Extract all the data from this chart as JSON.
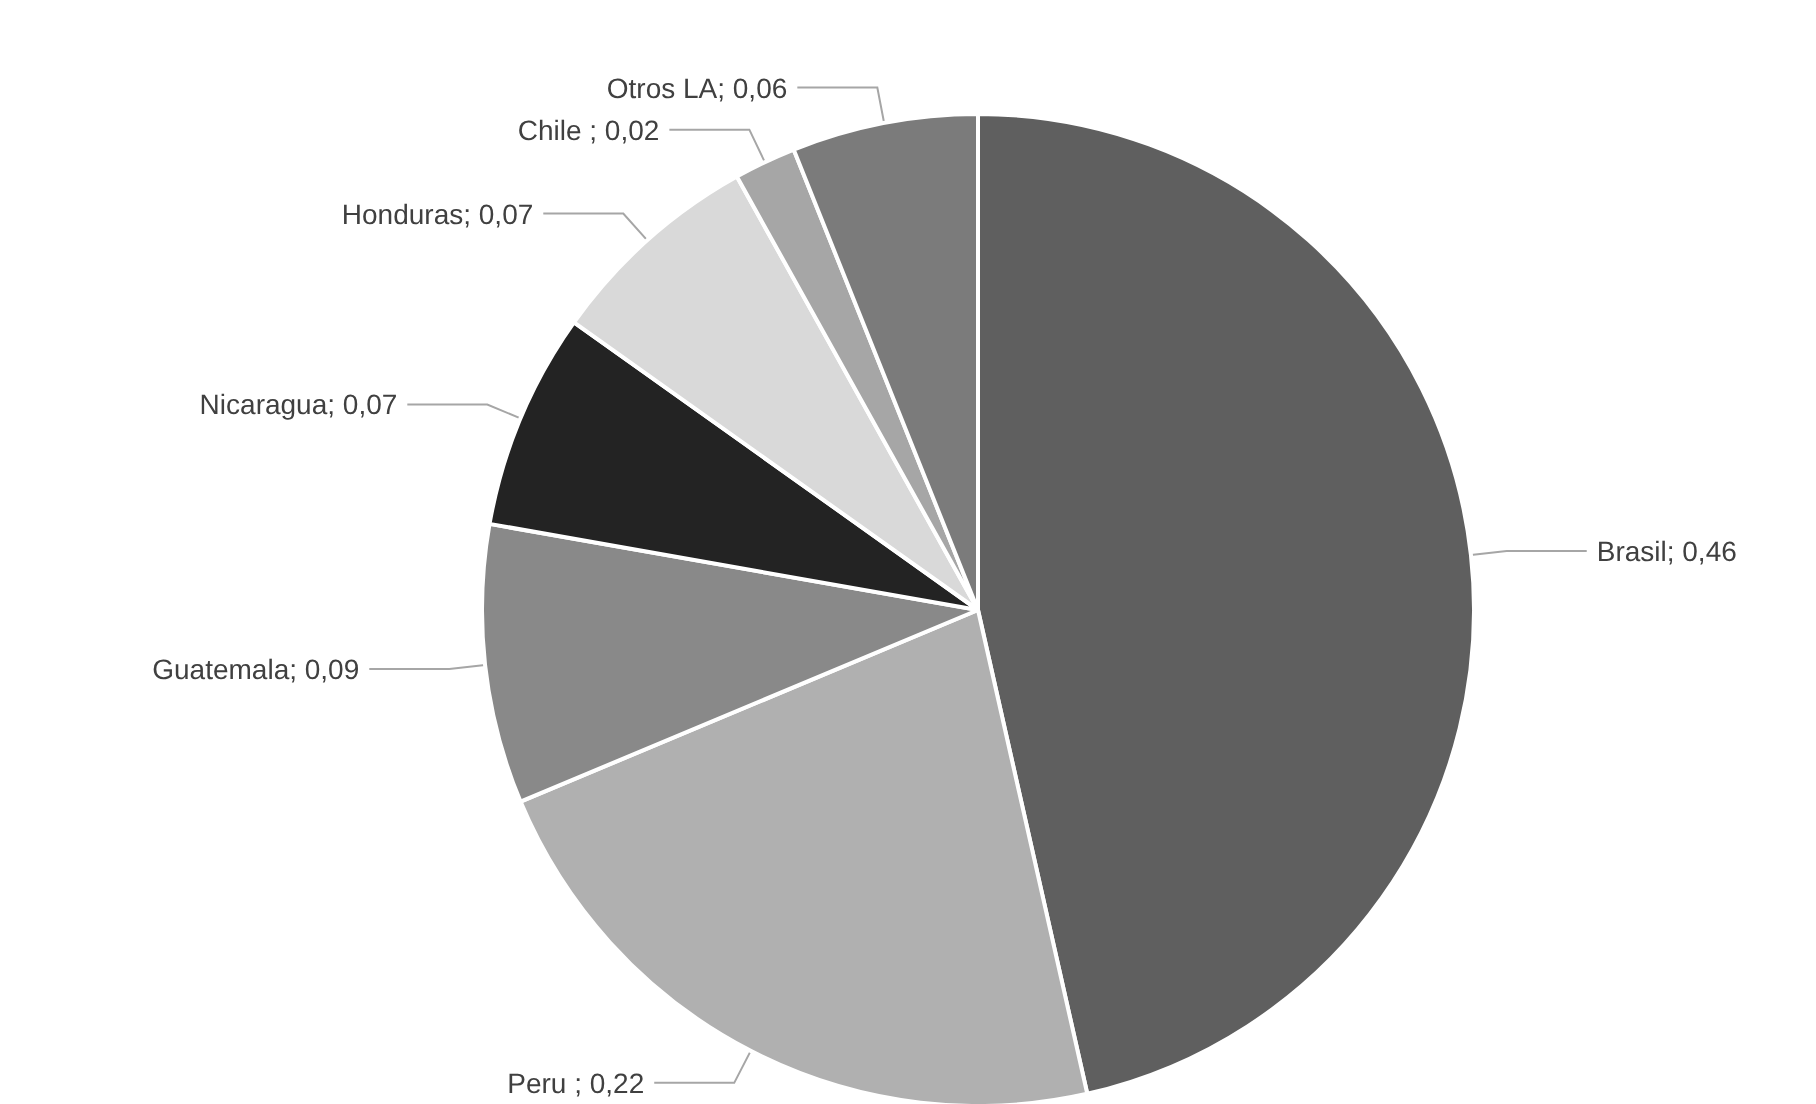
{
  "chart_data": {
    "type": "pie",
    "categories": [
      "Brasil",
      "Peru ",
      "Guatemala",
      "Nicaragua",
      "Honduras",
      "Chile ",
      "Otros LA"
    ],
    "values": [
      0.46,
      0.22,
      0.09,
      0.07,
      0.07,
      0.02,
      0.06
    ],
    "colors": [
      "#5f5f5f",
      "#b0b0b0",
      "#898989",
      "#232323",
      "#d9d9d9",
      "#a6a6a6",
      "#7b7b7b"
    ],
    "value_labels": [
      "0,46",
      "0,22",
      "0,09",
      "0,07",
      "0,07",
      "0,02",
      "0,06"
    ],
    "legend": false
  }
}
